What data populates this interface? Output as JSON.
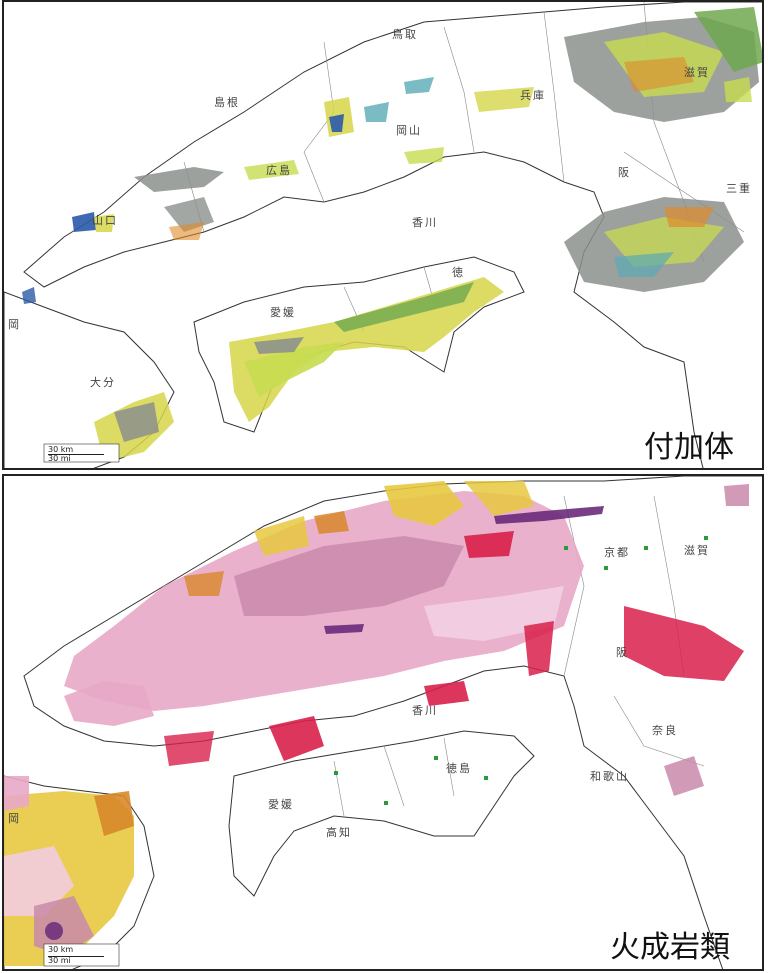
{
  "panels": {
    "top": {
      "caption": "付加体",
      "prefectures": [
        "鳥取",
        "島根",
        "岡山",
        "兵庫",
        "滋賀",
        "広島",
        "阪",
        "三重",
        "山口",
        "香川",
        "徳",
        "愛媛",
        "大分",
        "岡"
      ],
      "scale": {
        "km": "30 km",
        "mi": "30 mi"
      },
      "colors": {
        "gray": "#8c918c",
        "yellow": "#d6d64a",
        "lime": "#c8dc50",
        "green": "#6fa84f",
        "teal": "#5aaab4",
        "blue": "#2a5aa8",
        "orange": "#e08a2a"
      }
    },
    "bottom": {
      "caption": "火成岩類",
      "prefectures": [
        "京都",
        "滋賀",
        "阪",
        "奈良",
        "和歌山",
        "徳島",
        "香川",
        "愛媛",
        "高知",
        "岡"
      ],
      "scale": {
        "km": "30 km",
        "mi": "30 mi"
      },
      "colors": {
        "pink": "#e8a8c8",
        "lightpink": "#f2cde0",
        "mauve": "#c98aaa",
        "crimson": "#d8204a",
        "yellow": "#e8c840",
        "orange": "#d8882a",
        "purple": "#6a2a7a",
        "green": "#2a9a3a"
      }
    }
  }
}
